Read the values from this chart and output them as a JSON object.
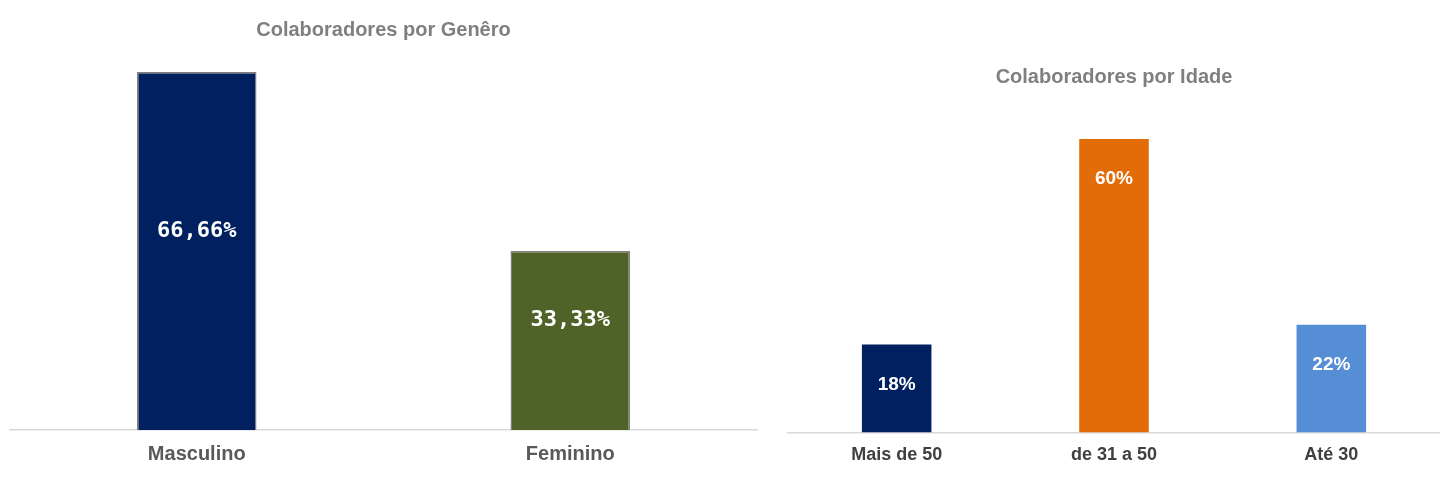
{
  "chart_data": [
    {
      "type": "bar",
      "title": "Colaboradores por Genêro",
      "categories": [
        "Masculino",
        "Feminino"
      ],
      "values": [
        66.66,
        33.33
      ],
      "colors": [
        "#002060",
        "#4f6228"
      ],
      "value_labels": [
        "66,66%",
        "33,33%"
      ],
      "grid": false,
      "legend": false
    },
    {
      "type": "bar",
      "title": "Colaboradores por Idade",
      "categories": [
        "Mais de 50",
        "de 31 a 50",
        "Até 30"
      ],
      "values": [
        18,
        60,
        22
      ],
      "colors": [
        "#002060",
        "#e36c09",
        "#558ed5"
      ],
      "value_labels": [
        "18%",
        "60%",
        "22%"
      ],
      "grid": false,
      "legend": false
    }
  ]
}
